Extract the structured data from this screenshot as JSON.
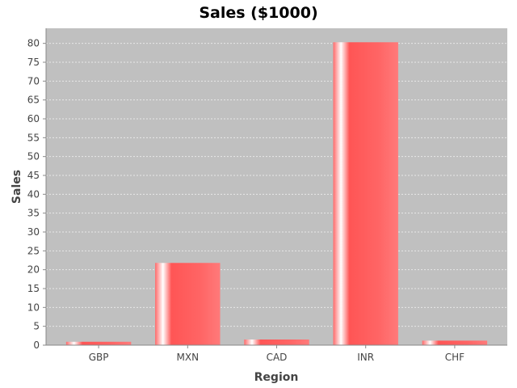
{
  "chart_data": {
    "type": "bar",
    "title": "Sales ($1000)",
    "xlabel": "Region",
    "ylabel": "Sales",
    "categories": [
      "GBP",
      "MXN",
      "CAD",
      "INR",
      "CHF"
    ],
    "values": [
      0.9,
      21.8,
      1.5,
      80.3,
      1.2
    ],
    "ylim": [
      0,
      84
    ],
    "yticks": [
      0,
      5,
      10,
      15,
      20,
      25,
      30,
      35,
      40,
      45,
      50,
      55,
      60,
      65,
      70,
      75,
      80
    ],
    "grid": true,
    "legend": "none",
    "colors": {
      "bar": "#ff5555",
      "bar_highlight": "#ffffff",
      "plot_background": "#c0c0c0",
      "gridline": "#e8e8e8"
    }
  }
}
